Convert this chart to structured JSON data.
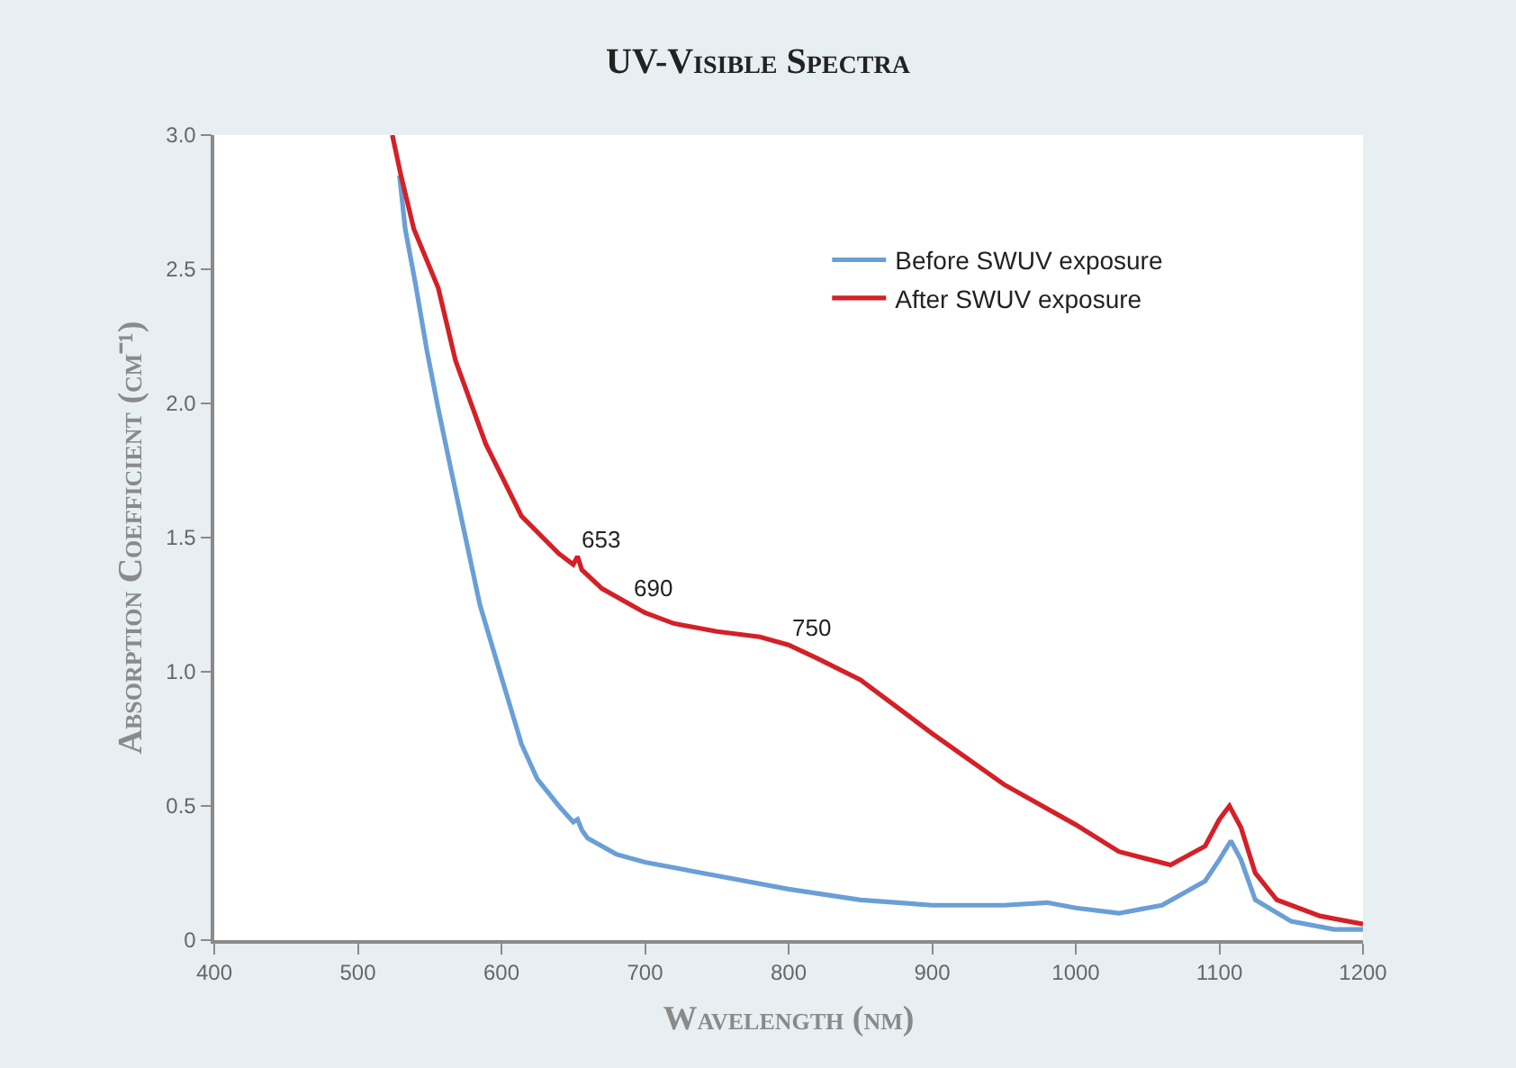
{
  "chart_data": {
    "type": "line",
    "title": "UV-Visible Spectra",
    "xlabel": "Wavelength (nm)",
    "ylabel": "Absorption Coefficient (cm⁻¹)",
    "xlim": [
      400,
      1200
    ],
    "xticks": [
      400,
      500,
      600,
      700,
      800,
      900,
      1000,
      1100,
      1200
    ],
    "ylim": [
      0,
      3
    ],
    "yticks": [
      0,
      {
        "value": 0.5,
        "label": "0.5"
      },
      {
        "value": 1,
        "label": "1.0"
      },
      {
        "value": 1.5,
        "label": "1.5"
      },
      {
        "value": 2,
        "label": "2.0"
      },
      {
        "value": 2.5,
        "label": "2.5"
      },
      {
        "value": 3,
        "label": "3.0"
      }
    ],
    "legend": "top right",
    "marker": "none",
    "line_style": "solid",
    "annotations": [
      {
        "text": "653",
        "x": 653,
        "y": 1.43
      },
      {
        "text": "690",
        "x": 690,
        "y": 1.25
      },
      {
        "text": "750",
        "x": 800,
        "y": 1.1
      }
    ],
    "series": [
      {
        "name": "Before SWUV exposure",
        "color": "#6a9fd6",
        "x": [
          529,
          533,
          540,
          548,
          556,
          565,
          573,
          585,
          600,
          614,
          625,
          640,
          650,
          653,
          656,
          660,
          680,
          700,
          750,
          800,
          850,
          900,
          950,
          980,
          1000,
          1030,
          1060,
          1090,
          1100,
          1108,
          1115,
          1125,
          1150,
          1180,
          1200
        ],
        "values": [
          2.85,
          2.65,
          2.45,
          2.2,
          1.98,
          1.75,
          1.55,
          1.25,
          0.98,
          0.73,
          0.6,
          0.5,
          0.44,
          0.45,
          0.41,
          0.38,
          0.32,
          0.29,
          0.24,
          0.19,
          0.15,
          0.13,
          0.13,
          0.14,
          0.12,
          0.1,
          0.13,
          0.22,
          0.3,
          0.37,
          0.3,
          0.15,
          0.07,
          0.04,
          0.04
        ]
      },
      {
        "name": "After SWUV exposure",
        "color": "#d42027",
        "x": [
          524,
          530,
          539,
          556,
          568,
          589,
          614,
          640,
          650,
          653,
          656,
          670,
          690,
          700,
          720,
          750,
          780,
          800,
          820,
          850,
          880,
          900,
          950,
          1000,
          1030,
          1066,
          1090,
          1100,
          1107,
          1115,
          1125,
          1140,
          1170,
          1200
        ],
        "values": [
          3.0,
          2.85,
          2.65,
          2.43,
          2.16,
          1.85,
          1.58,
          1.44,
          1.4,
          1.43,
          1.38,
          1.31,
          1.25,
          1.22,
          1.18,
          1.15,
          1.13,
          1.1,
          1.05,
          0.97,
          0.85,
          0.77,
          0.58,
          0.43,
          0.33,
          0.28,
          0.35,
          0.45,
          0.5,
          0.42,
          0.25,
          0.15,
          0.09,
          0.06
        ]
      }
    ]
  }
}
